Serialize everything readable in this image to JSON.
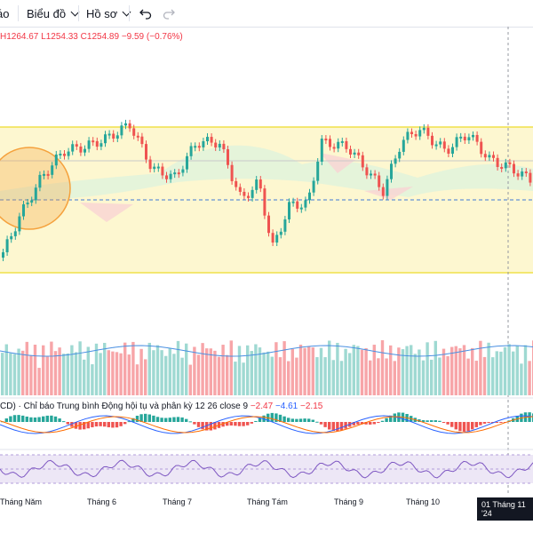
{
  "toolbar": {
    "partial_item": "áo",
    "indicators_label": "Biểu đồ",
    "profile_label": "Hồ sơ",
    "undo_icon": "undo-icon",
    "redo_icon": "redo-icon"
  },
  "legend": {
    "high": "H1264.67",
    "low": "L1254.33",
    "close": "C1254.89",
    "change": "−9.59 (−0.76%)"
  },
  "macd": {
    "title": "CD) · Chỉ báo Trung bình Động hội tụ và phân kỳ 12 26 close 9",
    "v1": "−2.47",
    "v2": "−4.61",
    "v3": "−2.15"
  },
  "xaxis": {
    "labels": [
      "Tháng Năm",
      "Tháng 6",
      "Tháng 7",
      "Tháng Tám",
      "Tháng 9",
      "Tháng 10"
    ],
    "crosshair_label": "01 Tháng 11 '24"
  },
  "colors": {
    "up": "#26a69a",
    "down": "#ef5350",
    "band": "#fdf7d0",
    "band_line": "#f0e04a",
    "circle": "#f5a13c",
    "dashed": "#3e78d6",
    "rsi_fill": "#ede7f6",
    "rsi_line": "#7e57c2"
  }
}
